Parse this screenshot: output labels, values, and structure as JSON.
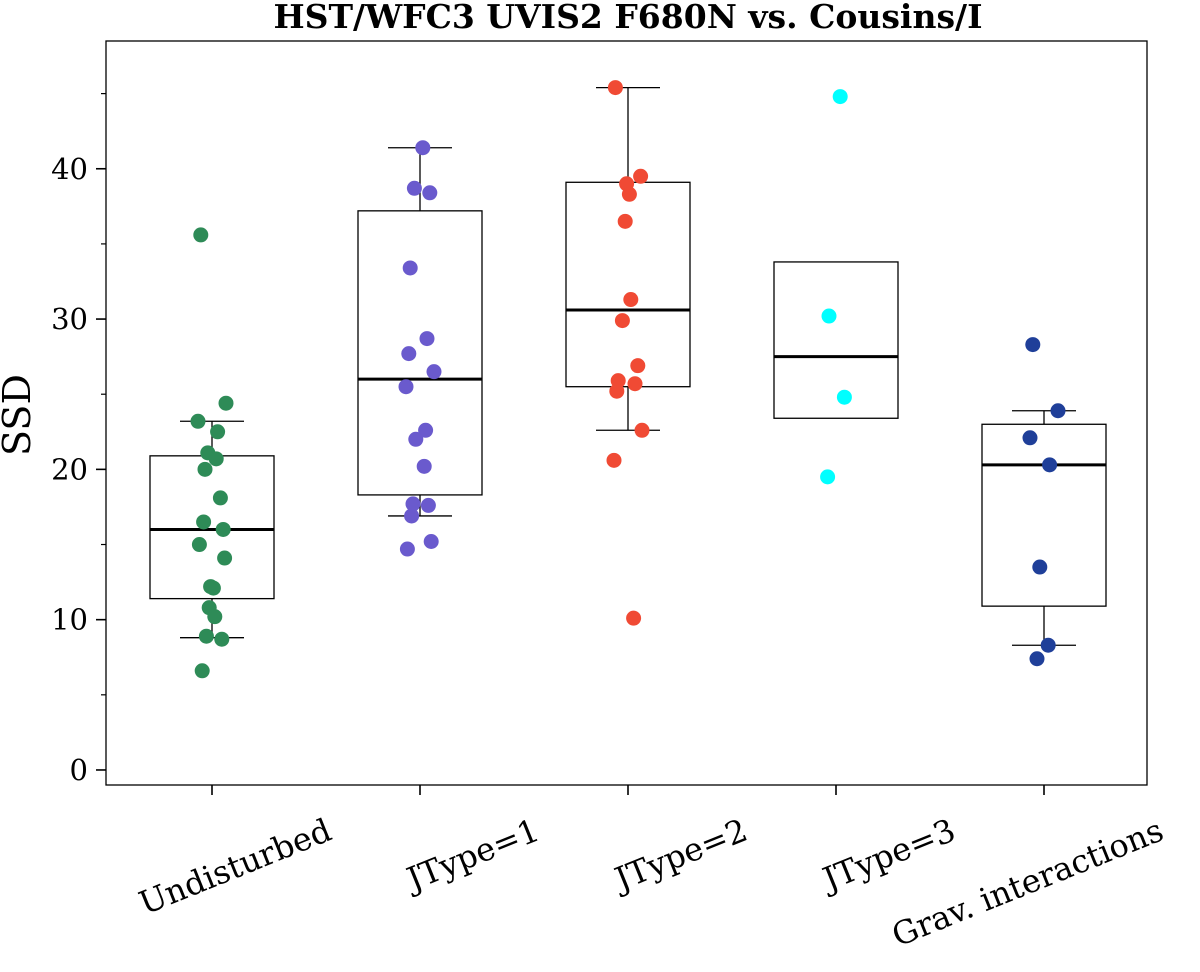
{
  "chart_data": {
    "type": "box",
    "title": "HST/WFC3 UVIS2 F680N vs. Cousins/I",
    "xlabel": "",
    "ylabel": "SSD",
    "ylim": [
      -1,
      48.5
    ],
    "yticks": [
      0,
      10,
      20,
      30,
      40
    ],
    "ytick_labels": [
      "0",
      "10",
      "20",
      "30",
      "40"
    ],
    "categories": [
      "Undisturbed",
      "JType=1",
      "JType=2",
      "JType=3",
      "Grav. interactions"
    ],
    "boxes": [
      {
        "name": "Undisturbed",
        "q1": 11.4,
        "median": 16.0,
        "q3": 20.9,
        "whisker_low": 8.8,
        "whisker_high": 23.2,
        "color": "#2e8b57",
        "points": [
          35.6,
          24.4,
          23.2,
          22.5,
          21.1,
          20.7,
          20.0,
          18.1,
          16.5,
          16.0,
          15.0,
          14.1,
          12.2,
          12.1,
          10.8,
          10.2,
          8.9,
          8.7,
          6.6
        ]
      },
      {
        "name": "JType=1",
        "q1": 18.3,
        "median": 26.0,
        "q3": 37.2,
        "whisker_low": 16.9,
        "whisker_high": 41.4,
        "color": "#6a5acd",
        "points": [
          41.4,
          38.7,
          38.4,
          33.4,
          28.7,
          27.7,
          26.5,
          25.5,
          22.6,
          22.0,
          20.2,
          17.7,
          17.6,
          16.9,
          15.2,
          14.7
        ]
      },
      {
        "name": "JType=2",
        "q1": 25.5,
        "median": 30.6,
        "q3": 39.1,
        "whisker_low": 22.6,
        "whisker_high": 45.4,
        "color": "#f04a34",
        "points": [
          45.4,
          39.5,
          39.0,
          38.3,
          36.5,
          31.3,
          29.9,
          26.9,
          25.9,
          25.7,
          25.2,
          22.6,
          20.6,
          10.1
        ]
      },
      {
        "name": "JType=3",
        "q1": 23.4,
        "median": 27.5,
        "q3": 33.8,
        "whisker_low": null,
        "whisker_high": null,
        "color": "#00ffff",
        "points": [
          44.8,
          30.2,
          24.8,
          19.5
        ]
      },
      {
        "name": "Grav. interactions",
        "q1": 10.9,
        "median": 20.3,
        "q3": 23.0,
        "whisker_low": 8.3,
        "whisker_high": 23.9,
        "color": "#1f3f99",
        "points": [
          28.3,
          23.9,
          22.1,
          20.3,
          13.5,
          8.3,
          7.4
        ]
      }
    ]
  }
}
